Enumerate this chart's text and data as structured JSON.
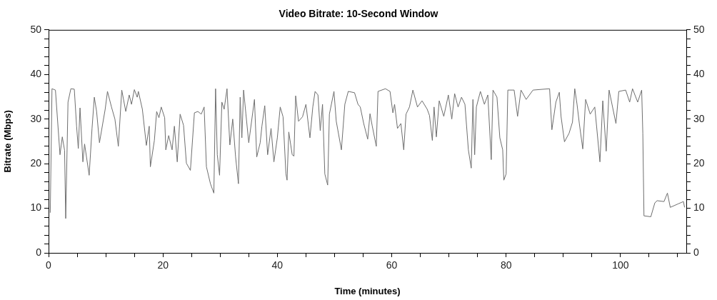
{
  "chart_data": {
    "type": "line",
    "title": "Video Bitrate: 10-Second Window",
    "xlabel": "Time (minutes)",
    "ylabel": "Bitrate (Mbps)",
    "xlim": [
      0,
      111.5
    ],
    "xticks": [
      0,
      {
        "value": 5,
        "label": null
      },
      20,
      {
        "value": 10,
        "label": null
      },
      {
        "value": 15,
        "label": null
      },
      {
        "value": 25,
        "label": null
      },
      {
        "value": 30,
        "label": null
      },
      {
        "value": 35,
        "label": null
      },
      40,
      {
        "value": 45,
        "label": null
      },
      {
        "value": 50,
        "label": null
      },
      {
        "value": 55,
        "label": null
      },
      60,
      {
        "value": 65,
        "label": null
      },
      {
        "value": 70,
        "label": null
      },
      {
        "value": 75,
        "label": null
      },
      80,
      {
        "value": 85,
        "label": null
      },
      {
        "value": 90,
        "label": null
      },
      {
        "value": 95,
        "label": null
      },
      100,
      {
        "value": 105,
        "label": null
      },
      {
        "value": 110,
        "label": null
      }
    ],
    "ylim": [
      0,
      50
    ],
    "yticks": [
      0,
      {
        "value": 2,
        "label": null
      },
      {
        "value": 4,
        "label": null
      },
      {
        "value": 6,
        "label": null
      },
      {
        "value": 8,
        "label": null
      },
      10,
      {
        "value": 12,
        "label": null
      },
      {
        "value": 14,
        "label": null
      },
      {
        "value": 16,
        "label": null
      },
      {
        "value": 18,
        "label": null
      },
      20,
      {
        "value": 22,
        "label": null
      },
      {
        "value": 24,
        "label": null
      },
      {
        "value": 26,
        "label": null
      },
      {
        "value": 28,
        "label": null
      },
      30,
      {
        "value": 32,
        "label": null
      },
      {
        "value": 34,
        "label": null
      },
      {
        "value": 36,
        "label": null
      },
      {
        "value": 38,
        "label": null
      },
      40,
      {
        "value": 42,
        "label": null
      },
      {
        "value": 44,
        "label": null
      },
      {
        "value": 46,
        "label": null
      },
      {
        "value": 48,
        "label": null
      },
      50
    ],
    "y2lim": [
      0,
      50
    ],
    "y2ticks": [
      0,
      {
        "value": 2,
        "label": null
      },
      {
        "value": 4,
        "label": null
      },
      {
        "value": 6,
        "label": null
      },
      {
        "value": 8,
        "label": null
      },
      10,
      {
        "value": 12,
        "label": null
      },
      {
        "value": 14,
        "label": null
      },
      {
        "value": 16,
        "label": null
      },
      {
        "value": 18,
        "label": null
      },
      20,
      {
        "value": 22,
        "label": null
      },
      {
        "value": 24,
        "label": null
      },
      {
        "value": 26,
        "label": null
      },
      {
        "value": 28,
        "label": null
      },
      30,
      {
        "value": 32,
        "label": null
      },
      {
        "value": 34,
        "label": null
      },
      {
        "value": 36,
        "label": null
      },
      {
        "value": 38,
        "label": null
      },
      40,
      {
        "value": 42,
        "label": null
      },
      {
        "value": 44,
        "label": null
      },
      {
        "value": 46,
        "label": null
      },
      {
        "value": 48,
        "label": null
      },
      50
    ],
    "grid": false,
    "legend": false,
    "marker": "none",
    "line_style": "solid",
    "series": [
      {
        "color": "#6e6e6e",
        "x": [
          0.3,
          0.6,
          1.2,
          2.0,
          2.4,
          2.8,
          3.0,
          3.4,
          3.9,
          4.5,
          4.9,
          5.2,
          5.5,
          6.0,
          6.3,
          7.1,
          7.6,
          8.0,
          8.4,
          8.9,
          9.9,
          10.3,
          11.0,
          11.6,
          12.2,
          12.8,
          13.5,
          14.1,
          14.5,
          15.0,
          15.5,
          15.7,
          16.4,
          17.1,
          17.6,
          17.8,
          18.5,
          18.9,
          19.3,
          19.7,
          20.3,
          20.5,
          21.0,
          21.6,
          22.0,
          22.5,
          23.0,
          23.6,
          24.1,
          24.8,
          25.5,
          26.1,
          26.7,
          27.2,
          27.6,
          28.3,
          28.9,
          29.2,
          29.5,
          29.9,
          30.3,
          30.7,
          31.2,
          31.7,
          32.2,
          32.7,
          33.2,
          33.5,
          33.8,
          34.1,
          34.5,
          35.0,
          36.0,
          36.4,
          37.0,
          37.3,
          37.8,
          38.3,
          38.9,
          39.4,
          40.0,
          40.5,
          41.0,
          41.5,
          41.7,
          42.0,
          42.6,
          42.9,
          43.2,
          43.7,
          44.4,
          45.0,
          45.7,
          46.2,
          46.6,
          47.1,
          47.5,
          47.9,
          48.3,
          48.8,
          49.1,
          49.9,
          50.3,
          51.2,
          51.8,
          52.4,
          53.5,
          54.1,
          54.5,
          55.1,
          55.8,
          56.2,
          56.6,
          57.3,
          57.6,
          58.9,
          59.7,
          60.2,
          60.5,
          61.0,
          61.6,
          62.1,
          62.5,
          63.1,
          63.7,
          64.5,
          65.3,
          66.2,
          66.6,
          67.1,
          67.4,
          67.8,
          68.3,
          69.1,
          69.9,
          70.5,
          71.0,
          71.6,
          72.2,
          72.8,
          73.4,
          73.9,
          74.2,
          74.5,
          74.8,
          75.5,
          76.2,
          76.8,
          77.4,
          77.7,
          78.4,
          78.9,
          79.4,
          79.6,
          80.0,
          80.3,
          81.4,
          82.0,
          82.6,
          83.5,
          84.7,
          87.6,
          88.0,
          88.7,
          89.3,
          89.6,
          90.2,
          91.0,
          91.6,
          92.0,
          92.4,
          92.8,
          93.4,
          93.9,
          94.7,
          95.5,
          96.4,
          96.9,
          97.5,
          98.0,
          99.2,
          99.7,
          100.9,
          101.6,
          102.1,
          103.0,
          103.7,
          103.9,
          104.1,
          105.3,
          106.0,
          106.4,
          107.6,
          108.2,
          108.7,
          110.1,
          111.0,
          111.2
        ],
        "values": [
          9.0,
          36.8,
          36.5,
          22,
          26,
          23,
          7.7,
          33.8,
          36.8,
          36.7,
          28.4,
          23.4,
          32.5,
          20.4,
          24.4,
          17.4,
          27.9,
          34.9,
          31.7,
          24.7,
          32.2,
          36.2,
          32.7,
          30.0,
          23.9,
          36.5,
          31.7,
          35.4,
          33.3,
          36.6,
          34.9,
          36.2,
          32.2,
          24.1,
          28.4,
          19.3,
          25.2,
          31.7,
          30.3,
          32.7,
          30.3,
          23.1,
          26.3,
          23.1,
          28.4,
          20.4,
          31.1,
          28.6,
          20.1,
          18.5,
          31.4,
          31.7,
          31.1,
          32.7,
          19.3,
          15.5,
          13.4,
          36.8,
          22.0,
          17.4,
          33.8,
          32.2,
          36.8,
          24.2,
          30.0,
          21.5,
          15.5,
          34.9,
          25.8,
          36.5,
          31.2,
          24.7,
          34.4,
          21.5,
          24.7,
          28.4,
          33.0,
          22.0,
          27.9,
          20.4,
          25.8,
          32.7,
          30.5,
          17.7,
          16.3,
          27.1,
          22.0,
          21.7,
          35.2,
          29.5,
          30.5,
          33.3,
          25.8,
          32.7,
          36.2,
          35.4,
          27.4,
          33.3,
          17.7,
          15.2,
          31.1,
          36.2,
          29.5,
          23.1,
          33.3,
          36.2,
          35.9,
          33.3,
          32.7,
          29.0,
          25.5,
          31.2,
          28.4,
          23.9,
          36.2,
          36.8,
          36.2,
          31.4,
          33.3,
          27.9,
          29.0,
          23.1,
          31.1,
          32.7,
          36.5,
          32.7,
          34.1,
          32.2,
          30.8,
          25.2,
          32.7,
          26.0,
          34.1,
          30.6,
          35.4,
          30.0,
          35.7,
          32.7,
          34.9,
          33.3,
          23.1,
          19.0,
          34.4,
          22.0,
          32.7,
          36.2,
          33.3,
          35.4,
          20.9,
          36.5,
          34.9,
          25.8,
          23.1,
          16.3,
          17.7,
          36.5,
          36.5,
          30.6,
          36.5,
          34.4,
          36.5,
          36.8,
          27.6,
          33.8,
          36.0,
          30.6,
          24.9,
          26.8,
          29.3,
          36.8,
          33.3,
          29.0,
          23.3,
          34.4,
          31.1,
          32.7,
          20.4,
          34.1,
          22.8,
          36.5,
          29.0,
          36.2,
          36.5,
          33.8,
          36.8,
          33.8,
          36.5,
          26.8,
          8.3,
          8.1,
          11.2,
          11.7,
          11.5,
          13.4,
          10.2,
          11.0,
          11.5,
          10.2
        ]
      }
    ]
  }
}
